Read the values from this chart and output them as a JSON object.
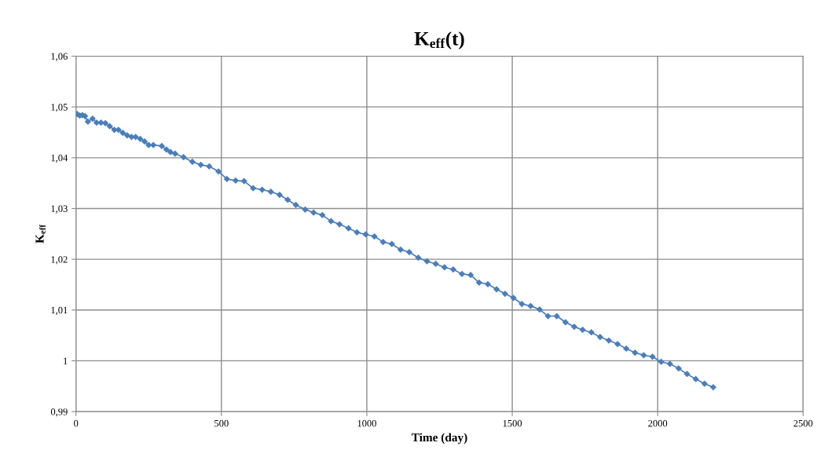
{
  "chart_data": {
    "type": "line",
    "title": "K$_{eff}$(t)",
    "xlabel": "Time (day)",
    "ylabel": "K$_{eff}$",
    "x": [
      4,
      13,
      22,
      31,
      41,
      57,
      71,
      86,
      101,
      116,
      132,
      146,
      161,
      176,
      191,
      205,
      221,
      236,
      250,
      266,
      295,
      311,
      325,
      341,
      370,
      400,
      429,
      458,
      490,
      519,
      549,
      578,
      609,
      640,
      670,
      700,
      728,
      756,
      788,
      817,
      847,
      877,
      906,
      937,
      966,
      996,
      1026,
      1056,
      1086,
      1116,
      1146,
      1177,
      1207,
      1237,
      1267,
      1297,
      1327,
      1357,
      1386,
      1416,
      1446,
      1475,
      1504,
      1533,
      1563,
      1594,
      1623,
      1653,
      1683,
      1713,
      1742,
      1772,
      1802,
      1832,
      1862,
      1892,
      1922,
      1952,
      1982,
      2012,
      2042,
      2072,
      2101,
      2131,
      2161,
      2191
    ],
    "series": [
      {
        "color": "#4a7ebb",
        "values": [
          1.0486,
          1.0483,
          1.0484,
          1.0482,
          1.0471,
          1.0477,
          1.0469,
          1.0469,
          1.0468,
          1.0462,
          1.0455,
          1.0455,
          1.0449,
          1.0444,
          1.0441,
          1.0441,
          1.0437,
          1.0432,
          1.0425,
          1.0425,
          1.0423,
          1.0416,
          1.0411,
          1.0408,
          1.0401,
          1.0392,
          1.0386,
          1.0383,
          1.0373,
          1.0358,
          1.0355,
          1.0354,
          1.034,
          1.0337,
          1.0333,
          1.0327,
          1.0317,
          1.0307,
          1.0298,
          1.0292,
          1.0287,
          1.0275,
          1.0269,
          1.0261,
          1.0253,
          1.0249,
          1.0245,
          1.0234,
          1.023,
          1.0219,
          1.0214,
          1.0203,
          1.0196,
          1.0191,
          1.0184,
          1.018,
          1.0171,
          1.0169,
          1.0154,
          1.0151,
          1.0141,
          1.0132,
          1.0124,
          1.0112,
          1.0108,
          1.0101,
          1.0088,
          1.0088,
          1.0076,
          1.0067,
          1.0061,
          1.0056,
          1.0047,
          1.004,
          1.0033,
          1.0024,
          1.0016,
          1.0011,
          1.0008,
          0.9998,
          0.9994,
          0.9985,
          0.9974,
          0.9964,
          0.9955,
          0.9948
        ]
      }
    ],
    "xlim": [
      0,
      2500
    ],
    "xticks": [
      0,
      500,
      1000,
      1500,
      2000,
      2500
    ],
    "ylim": [
      0.99,
      1.06
    ],
    "yticks": [
      {
        "value": 0.99,
        "label": "0,99"
      },
      {
        "value": 1,
        "label": "1"
      },
      {
        "value": 1.01,
        "label": "1,01"
      },
      {
        "value": 1.02,
        "label": "1,02"
      },
      {
        "value": 1.03,
        "label": "1,03"
      },
      {
        "value": 1.04,
        "label": "1,04"
      },
      {
        "value": 1.05,
        "label": "1,05"
      },
      {
        "value": 1.06,
        "label": "1,06"
      }
    ],
    "grid": true,
    "marker": "diamond",
    "line_style": "solid",
    "legend": false
  }
}
